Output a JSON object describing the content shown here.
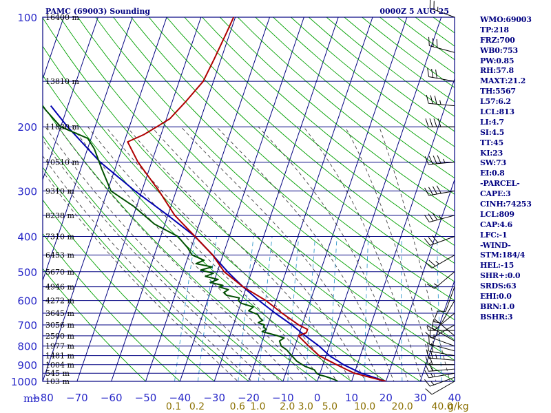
{
  "title_left": "PAMC (69003) Sounding",
  "title_right": "0000Z  5 AUG 25",
  "colors": {
    "frame": "#000080",
    "isotherm": "#000080",
    "dry_adiabat": "#00a000",
    "moist_adiabat": "#404040",
    "mixing_ratio": "#3399cc",
    "temperature": "#b00000",
    "dewpoint": "#005000",
    "parcel": "#0000b0",
    "wind_barb": "#000000",
    "mixing_label": "#8b7000"
  },
  "chart_data": {
    "type": "skew-t",
    "y_axis": {
      "unit_label": "mb",
      "scale": "log",
      "ylim": [
        1000,
        100
      ],
      "ticks": [
        "100",
        "200",
        "300",
        "400",
        "500",
        "600",
        "700",
        "800",
        "900",
        "1000"
      ]
    },
    "x_axis": {
      "xlim": [
        -80,
        40
      ],
      "ticks": [
        "−80",
        "−70",
        "−60",
        "−50",
        "−40",
        "−30",
        "−20",
        "−10",
        "0",
        "10",
        "20",
        "30",
        "40"
      ]
    },
    "mixing_ratio_labels": [
      "0.1",
      "0.2",
      "0.6",
      "1.0",
      "2.0",
      "3.0",
      "5.0",
      "10.0",
      "20.0",
      "40.0"
    ],
    "mixing_ratio_unit": "g/kg",
    "height_labels": [
      {
        "p": 100,
        "text": "16400 m"
      },
      {
        "p": 150,
        "text": "13810 m"
      },
      {
        "p": 200,
        "text": "11830 m"
      },
      {
        "p": 250,
        "text": "10510 m"
      },
      {
        "p": 300,
        "text": "9310 m"
      },
      {
        "p": 350,
        "text": "8238 m"
      },
      {
        "p": 400,
        "text": "7310 m"
      },
      {
        "p": 450,
        "text": "6453 m"
      },
      {
        "p": 500,
        "text": "5670 m"
      },
      {
        "p": 550,
        "text": "4946 m"
      },
      {
        "p": 600,
        "text": "4272 m"
      },
      {
        "p": 650,
        "text": "3645 m"
      },
      {
        "p": 700,
        "text": "3056 m"
      },
      {
        "p": 750,
        "text": "2500 m"
      },
      {
        "p": 800,
        "text": "1977 m"
      },
      {
        "p": 850,
        "text": "1481 m"
      },
      {
        "p": 900,
        "text": "1004 m"
      },
      {
        "p": 950,
        "text": "545 m"
      },
      {
        "p": 1000,
        "text": "103 m"
      }
    ],
    "temperature": [
      [
        1000,
        20
      ],
      [
        975,
        15
      ],
      [
        950,
        10
      ],
      [
        925,
        7
      ],
      [
        900,
        4
      ],
      [
        875,
        1
      ],
      [
        850,
        -2
      ],
      [
        825,
        -4
      ],
      [
        800,
        -6
      ],
      [
        775,
        -8
      ],
      [
        750,
        -10
      ],
      [
        735,
        -8
      ],
      [
        720,
        -8
      ],
      [
        700,
        -11
      ],
      [
        650,
        -17
      ],
      [
        600,
        -23
      ],
      [
        550,
        -31
      ],
      [
        500,
        -38
      ],
      [
        450,
        -43
      ],
      [
        400,
        -50
      ],
      [
        350,
        -58
      ],
      [
        300,
        -65
      ],
      [
        250,
        -74
      ],
      [
        220,
        -79
      ],
      [
        210,
        -75
      ],
      [
        200,
        -72
      ],
      [
        190,
        -69
      ],
      [
        170,
        -66
      ],
      [
        150,
        -63
      ],
      [
        130,
        -62
      ],
      [
        110,
        -61
      ],
      [
        100,
        -60.5
      ]
    ],
    "dewpoint": [
      [
        1000,
        6
      ],
      [
        990,
        5
      ],
      [
        970,
        2
      ],
      [
        960,
        0
      ],
      [
        950,
        -1
      ],
      [
        930,
        -2
      ],
      [
        910,
        -5
      ],
      [
        900,
        -6
      ],
      [
        880,
        -8
      ],
      [
        850,
        -10
      ],
      [
        820,
        -12
      ],
      [
        800,
        -14
      ],
      [
        775,
        -15
      ],
      [
        760,
        -14
      ],
      [
        750,
        -16
      ],
      [
        730,
        -21
      ],
      [
        720,
        -20
      ],
      [
        710,
        -21
      ],
      [
        700,
        -21
      ],
      [
        690,
        -23
      ],
      [
        680,
        -22
      ],
      [
        670,
        -23
      ],
      [
        655,
        -24
      ],
      [
        640,
        -27
      ],
      [
        625,
        -26
      ],
      [
        610,
        -30
      ],
      [
        600,
        -31
      ],
      [
        590,
        -31
      ],
      [
        580,
        -35
      ],
      [
        570,
        -36
      ],
      [
        560,
        -35
      ],
      [
        550,
        -38
      ],
      [
        545,
        -37
      ],
      [
        535,
        -41
      ],
      [
        525,
        -39
      ],
      [
        515,
        -43
      ],
      [
        505,
        -41
      ],
      [
        495,
        -45
      ],
      [
        485,
        -42
      ],
      [
        475,
        -47
      ],
      [
        465,
        -45
      ],
      [
        450,
        -49
      ],
      [
        430,
        -51
      ],
      [
        400,
        -55
      ],
      [
        370,
        -63
      ],
      [
        330,
        -71
      ],
      [
        300,
        -79
      ],
      [
        260,
        -84
      ],
      [
        230,
        -88
      ],
      [
        215,
        -91
      ],
      [
        200,
        -100
      ],
      [
        180,
        -106
      ],
      [
        160,
        -112
      ]
    ],
    "parcel": [
      [
        1000,
        20
      ],
      [
        950,
        12
      ],
      [
        900,
        6
      ],
      [
        850,
        1
      ],
      [
        800,
        -3
      ],
      [
        750,
        -8
      ],
      [
        700,
        -13
      ],
      [
        650,
        -19
      ],
      [
        600,
        -25
      ],
      [
        550,
        -31
      ],
      [
        500,
        -37
      ],
      [
        450,
        -43
      ],
      [
        400,
        -50
      ],
      [
        350,
        -60
      ],
      [
        300,
        -72
      ],
      [
        250,
        -85
      ],
      [
        200,
        -98
      ],
      [
        175,
        -105
      ]
    ],
    "wind_barbs": [
      {
        "p": 1000,
        "dir": 240,
        "spd": 10
      },
      {
        "p": 975,
        "dir": 250,
        "spd": 15
      },
      {
        "p": 950,
        "dir": 260,
        "spd": 15
      },
      {
        "p": 925,
        "dir": 265,
        "spd": 20
      },
      {
        "p": 900,
        "dir": 270,
        "spd": 20
      },
      {
        "p": 875,
        "dir": 275,
        "spd": 25
      },
      {
        "p": 850,
        "dir": 280,
        "spd": 20
      },
      {
        "p": 825,
        "dir": 285,
        "spd": 15
      },
      {
        "p": 800,
        "dir": 290,
        "spd": 15
      },
      {
        "p": 775,
        "dir": 300,
        "spd": 10
      },
      {
        "p": 750,
        "dir": 310,
        "spd": 10
      },
      {
        "p": 725,
        "dir": 270,
        "spd": 5
      },
      {
        "p": 700,
        "dir": 240,
        "spd": 10
      },
      {
        "p": 650,
        "dir": 230,
        "spd": 10
      },
      {
        "p": 600,
        "dir": 210,
        "spd": 10
      },
      {
        "p": 550,
        "dir": 200,
        "spd": 10
      },
      {
        "p": 500,
        "dir": 230,
        "spd": 15
      },
      {
        "p": 450,
        "dir": 240,
        "spd": 25
      },
      {
        "p": 400,
        "dir": 250,
        "spd": 30
      },
      {
        "p": 350,
        "dir": 255,
        "spd": 35
      },
      {
        "p": 300,
        "dir": 260,
        "spd": 40
      },
      {
        "p": 250,
        "dir": 265,
        "spd": 45
      },
      {
        "p": 200,
        "dir": 270,
        "spd": 40
      },
      {
        "p": 175,
        "dir": 275,
        "spd": 35
      },
      {
        "p": 150,
        "dir": 280,
        "spd": 30
      },
      {
        "p": 125,
        "dir": 285,
        "spd": 30
      },
      {
        "p": 100,
        "dir": 290,
        "spd": 25
      }
    ]
  },
  "indices": [
    "WMO:69003",
    "TP:218",
    "FRZ:700",
    "WB0:753",
    "PW:0.85",
    "RH:57.8",
    "MAXT:21.2",
    "TH:5567",
    "L57:6.2",
    "LCL:813",
    "LI:4.7",
    "SI:4.5",
    "TT:45",
    "KI:23",
    "SW:73",
    "EI:0.8",
    "-PARCEL-",
    "CAPE:3",
    "CINH:74253",
    "LCL:809",
    "CAP:4.6",
    "LFC:-1",
    "-WIND-",
    "STM:184/4",
    "HEL:-15",
    "SHR+:0.0",
    "SRDS:63",
    "EHI:0.0",
    "BRN:1.0",
    "BSHR:3"
  ]
}
